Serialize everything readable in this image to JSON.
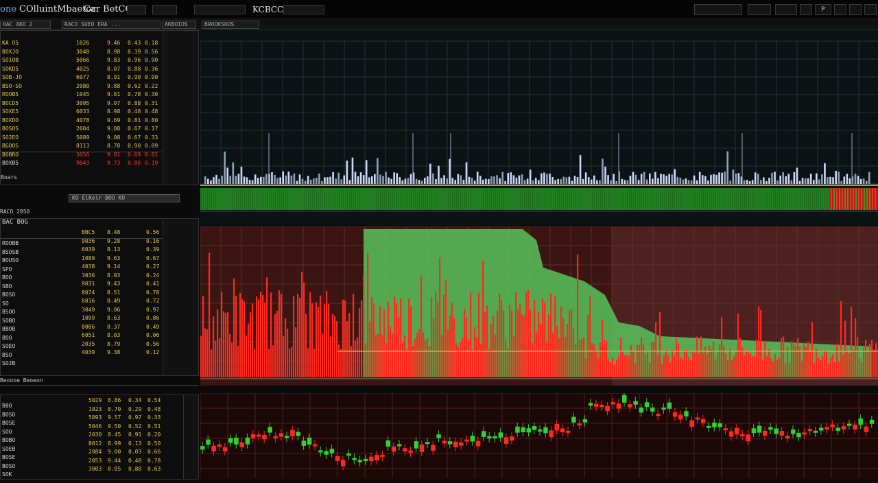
{
  "header": {
    "title_prefix": "one",
    "title": "COlluintMbaetor",
    "ticker": "Car BetCO",
    "symbol": "KCBCC",
    "buttons": [
      "",
      "",
      "",
      "",
      "",
      "",
      "P",
      "",
      ""
    ]
  },
  "tabs": [
    "OAC AKO 2",
    "RACO SUEO ERA ...",
    "AKBOIOS",
    "BROOKSOOS"
  ],
  "panel_top": {
    "label": "RACO 2050",
    "search_label": "KO ElKelr BOO KO",
    "col1": [
      "KA O5",
      "BOXJO",
      "SO1OB",
      "SOKD5",
      "SOB-JO",
      "BSO-SO",
      "ROOB5",
      "BOCD5",
      "SOXE5",
      "BOXDO",
      "BOSOS",
      "SO2EO",
      "BGOOS",
      "BOBRO",
      "BOXB5"
    ],
    "col2": [
      "1026",
      "3048",
      "5066",
      "4025",
      "6077",
      "2080",
      "1045",
      "3095",
      "6033",
      "4078",
      "2004",
      "5089",
      "8113",
      "3056",
      "9043"
    ],
    "col3": [
      "9.46",
      "8.98",
      "9.83",
      "8.07",
      "8.91",
      "9.88",
      "9.61",
      "9.07",
      "8.98",
      "9.69",
      "9.08",
      "9.08",
      "8.78",
      "9.81",
      "9.73"
    ],
    "col4": [
      "0.43",
      "0.39",
      "0.96",
      "0.88",
      "0.90",
      "0.62",
      "0.78",
      "0.88",
      "0.48",
      "0.81",
      "0.67",
      "0.67",
      "0.90",
      "0.69",
      "0.86"
    ],
    "col5": [
      "0.18",
      "0.56",
      "0.90",
      "0.36",
      "0.90",
      "0.22",
      "0.30",
      "0.31",
      "0.48",
      "0.80",
      "0.17",
      "0.33",
      "0.09",
      "0.81",
      "0.19"
    ],
    "footer": "Boars"
  },
  "panel_mid": {
    "label": "BAC BOG",
    "col1": [
      "ROOBB",
      "BSOSB",
      "BOUSO",
      "SPO",
      "BOO",
      "SBO",
      "BOSO",
      "SO",
      "BSOO",
      "SOBO",
      "BBOB",
      "BOO",
      "SOEO",
      "BSO",
      "SOJB"
    ],
    "col2": [
      "BBC5",
      "9036",
      "6039",
      "1089",
      "4038",
      "3036",
      "9031",
      "8074",
      "6016",
      "3049",
      "1099",
      "8086",
      "6051",
      "2035",
      "4039"
    ],
    "col3": [
      "8.48",
      "9.28",
      "8.13",
      "9.63",
      "9.14",
      "8.93",
      "9.43",
      "8.51",
      "8.49",
      "9.06",
      "8.63",
      "8.37",
      "8.03",
      "8.79",
      "9.38"
    ],
    "col4": [
      "0.56",
      "0.16",
      "0.39",
      "0.67",
      "0.27",
      "0.24",
      "0.41",
      "0.78",
      "0.72",
      "0.97",
      "0.86",
      "0.49",
      "0.06",
      "0.56",
      "0.12"
    ],
    "footer": "Beoooe Beoeon"
  },
  "panel_bot": {
    "col1": [
      "B0O",
      "BOSO",
      "BOSE",
      "SOO",
      "BOBO",
      "SOEB",
      "BOSE",
      "BOSO",
      "SOK"
    ],
    "col2": [
      "5029",
      "1023",
      "5093",
      "5046",
      "2030",
      "8012",
      "2084",
      "2053",
      "3003"
    ],
    "col3": [
      "8.86",
      "8.70",
      "9.57",
      "9.50",
      "8.45",
      "8.99",
      "9.00",
      "9.44",
      "8.05"
    ],
    "col4": [
      "0.34",
      "0.29",
      "0.97",
      "0.52",
      "0.91",
      "0.13",
      "0.03",
      "0.48",
      "0.80"
    ],
    "col5": [
      "0.54",
      "0.48",
      "0.33",
      "0.51",
      "0.20",
      "0.50",
      "0.66",
      "0.78",
      "0.63"
    ]
  },
  "colors": {
    "up": "#2fd22f",
    "down": "#ff2a1e",
    "volume": "#cfd8ff",
    "accent_text": "#e0c34a"
  }
}
